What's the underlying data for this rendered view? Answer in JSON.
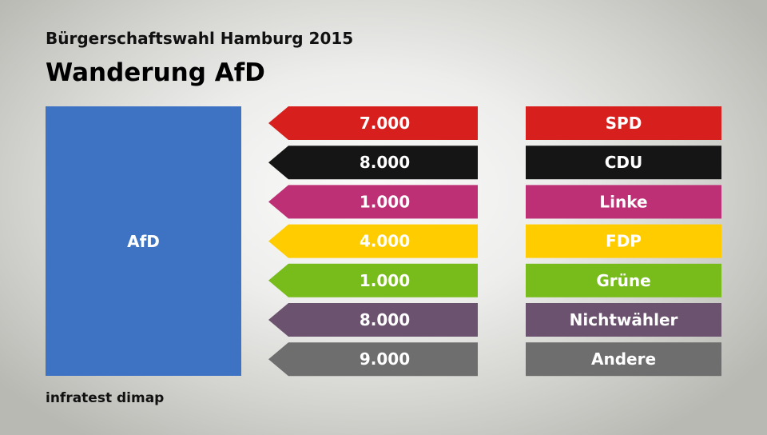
{
  "header": {
    "supertitle": "Bürgerschaftswahl Hamburg 2015",
    "title": "Wanderung AfD"
  },
  "source": "infratest dimap",
  "chart_data": {
    "type": "bar",
    "target": {
      "label": "AfD",
      "color": "#3e73c4"
    },
    "flows": [
      {
        "party": "SPD",
        "value": "7.000",
        "color": "#d71f1d"
      },
      {
        "party": "CDU",
        "value": "8.000",
        "color": "#151515"
      },
      {
        "party": "Linke",
        "value": "1.000",
        "color": "#be3075"
      },
      {
        "party": "FDP",
        "value": "4.000",
        "color": "#ffcc00"
      },
      {
        "party": "Grüne",
        "value": "1.000",
        "color": "#78bc1b"
      },
      {
        "party": "Nichtwähler",
        "value": "8.000",
        "color": "#6b536f"
      },
      {
        "party": "Andere",
        "value": "9.000",
        "color": "#6e6e6e"
      }
    ]
  }
}
